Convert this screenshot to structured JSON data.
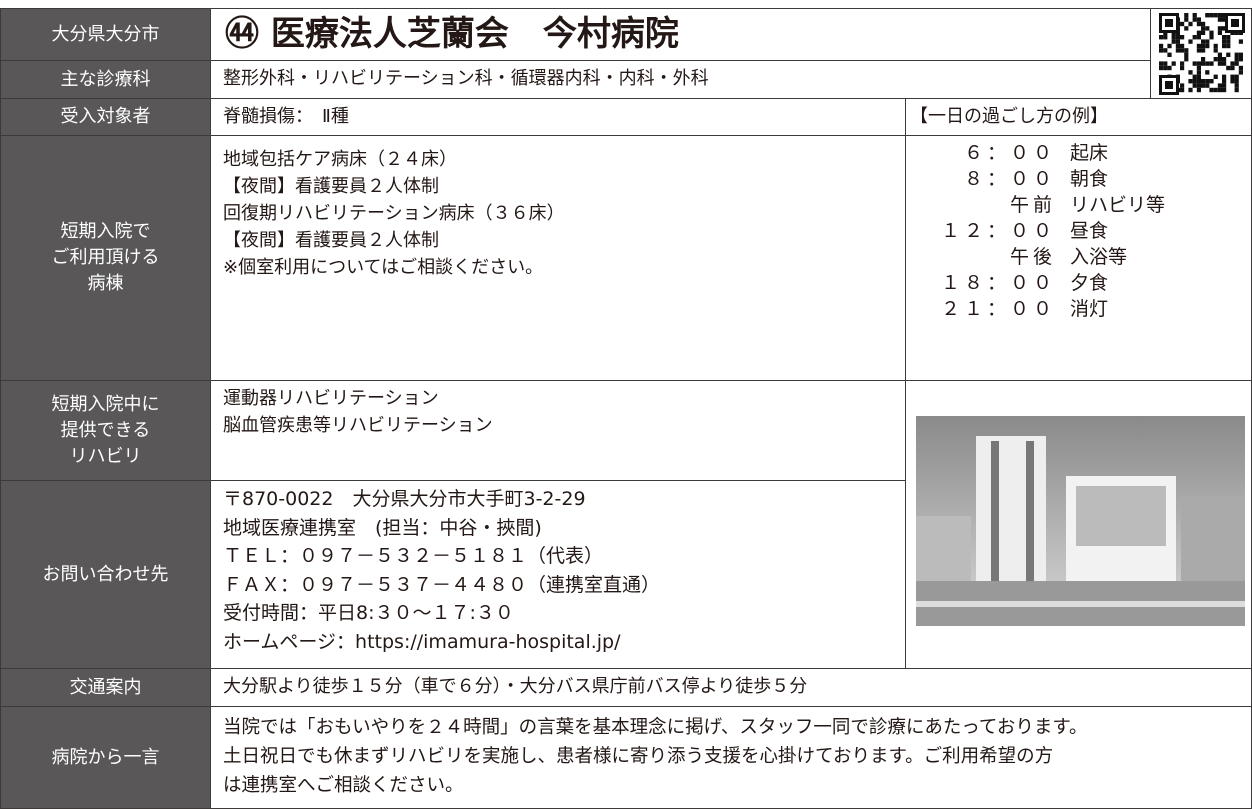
{
  "header": {
    "region": "大分県大分市",
    "number": "㊹",
    "title": "医療法人芝蘭会　今村病院"
  },
  "departments": {
    "label": "主な診療科",
    "text": "整形外科・リハビリテーション科・循環器内科・内科・外科"
  },
  "target": {
    "label": "受入対象者",
    "text": "脊髄損傷：　Ⅱ種"
  },
  "schedule": {
    "title": "【一日の過ごし方の例】",
    "items": [
      {
        "time": "６：００",
        "activity": "起床"
      },
      {
        "time": "８：００",
        "activity": "朝食"
      },
      {
        "time": "午前",
        "activity": "リハビリ等"
      },
      {
        "time": "１２：００",
        "activity": "昼食"
      },
      {
        "time": "午後",
        "activity": "入浴等"
      },
      {
        "time": "１８：００",
        "activity": "夕食"
      },
      {
        "time": "２１：００",
        "activity": "消灯"
      }
    ]
  },
  "wards": {
    "label": [
      "短期入院で",
      "ご利用頂ける",
      "病棟"
    ],
    "lines": [
      "地域包括ケア病床（２４床）",
      "【夜間】看護要員２人体制",
      "回復期リハビリテーション病床（３６床）",
      "【夜間】看護要員２人体制",
      "※個室利用についてはご相談ください。"
    ]
  },
  "rehab": {
    "label": [
      "短期入院中に",
      "提供できる",
      "リハビリ"
    ],
    "lines": [
      "運動器リハビリテーション",
      "脳血管疾患等リハビリテーション"
    ]
  },
  "contact": {
    "label": "お問い合わせ先",
    "lines": [
      "〒870-0022　大分県大分市大手町3-2-29",
      "地域医療連携室　(担当：中谷・挾間)",
      "ＴＥＬ：０９７－５３２－５１８１（代表）",
      "ＦＡＸ：０９７－５３７－４４８０（連携室直通）",
      "受付時間：平日8:３０～１７:３０",
      "ホームページ：https://imamura-hospital.jp/"
    ]
  },
  "access": {
    "label": "交通案内",
    "text": "大分駅より徒歩１５分（車で６分）・大分バス県庁前バス停より徒歩５分"
  },
  "message": {
    "label": "病院から一言",
    "lines": [
      "当院では「おもいやりを２４時間」の言葉を基本理念に掲げ、スタッフ一同で診療にあたっております。",
      "土日祝日でも休まずリハビリを実施し、患者様に寄り添う支援を心掛けております。ご利用希望の方",
      "は連携室へご相談ください。"
    ]
  }
}
